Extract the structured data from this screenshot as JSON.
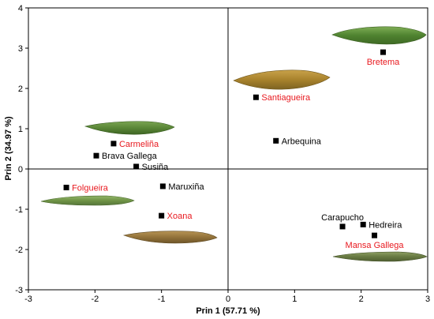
{
  "chart_data": {
    "type": "scatter",
    "title": "",
    "xlabel": "Prin 1 (57.71 %)",
    "ylabel": "Prin 2 (34.97 %)",
    "xlim": [
      -3,
      3
    ],
    "ylim": [
      -3,
      4
    ],
    "xticks": [
      -3,
      -2,
      -1,
      0,
      1,
      2,
      3
    ],
    "yticks": [
      -3,
      -2,
      -1,
      0,
      1,
      2,
      3,
      4
    ],
    "grid": false,
    "legend": "none",
    "colors": {
      "highlight": "#e8191f",
      "normal": "#000000",
      "marker": "#000000"
    },
    "points": [
      {
        "name": "Bretema",
        "x": 2.33,
        "y": 2.9,
        "highlight": true,
        "label_pos": "below"
      },
      {
        "name": "Santiagueira",
        "x": 0.42,
        "y": 1.78,
        "highlight": true,
        "label_pos": "right"
      },
      {
        "name": "Arbequina",
        "x": 0.72,
        "y": 0.7,
        "highlight": false,
        "label_pos": "right"
      },
      {
        "name": "Carmeliña",
        "x": -1.72,
        "y": 0.63,
        "highlight": true,
        "label_pos": "right"
      },
      {
        "name": "Brava Gallega",
        "x": -1.98,
        "y": 0.33,
        "highlight": false,
        "label_pos": "right"
      },
      {
        "name": "Susiña",
        "x": -1.38,
        "y": 0.06,
        "highlight": false,
        "label_pos": "right"
      },
      {
        "name": "Folgueira",
        "x": -2.43,
        "y": -0.46,
        "highlight": true,
        "label_pos": "right"
      },
      {
        "name": "Maruxiña",
        "x": -0.98,
        "y": -0.43,
        "highlight": false,
        "label_pos": "right"
      },
      {
        "name": "Xoana",
        "x": -1.0,
        "y": -1.16,
        "highlight": true,
        "label_pos": "right"
      },
      {
        "name": "Carapucho",
        "x": 1.72,
        "y": -1.43,
        "highlight": false,
        "label_pos": "above"
      },
      {
        "name": "Hedreira",
        "x": 2.03,
        "y": -1.38,
        "highlight": false,
        "label_pos": "right"
      },
      {
        "name": "Mansa Gallega",
        "x": 2.2,
        "y": -1.65,
        "highlight": true,
        "label_pos": "below"
      }
    ],
    "leaf_images": [
      {
        "near": "Bretema",
        "color": "#5d8a3c"
      },
      {
        "near": "Santiagueira",
        "color": "#b0892f"
      },
      {
        "near": "Carmeliña",
        "color": "#5f8c3a"
      },
      {
        "near": "Folgueira",
        "color": "#6f9446"
      },
      {
        "near": "Xoana",
        "color": "#9a7a3a"
      },
      {
        "near": "Mansa Gallega",
        "color": "#6b7d45"
      }
    ]
  }
}
